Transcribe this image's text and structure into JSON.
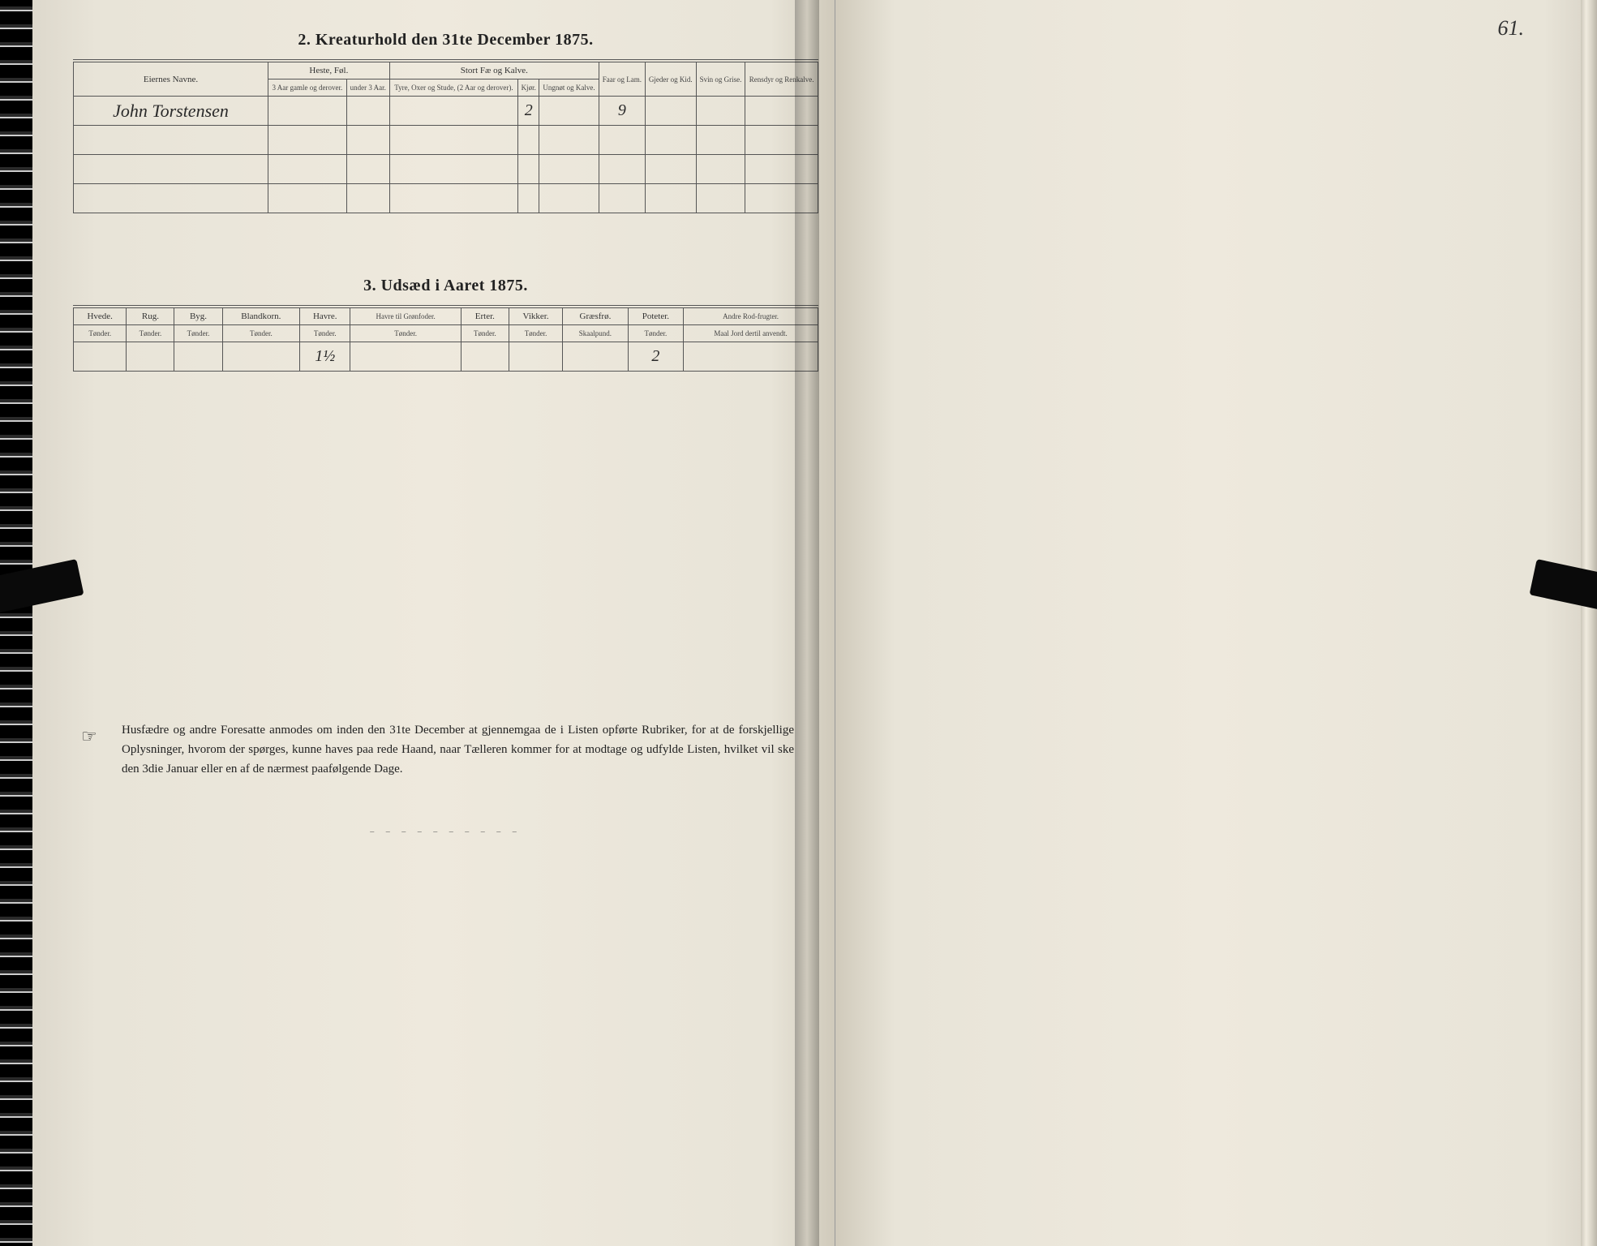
{
  "page_number_right": "61.",
  "section2": {
    "title_num": "2.",
    "title_text": "Kreaturhold den 31te December 1875.",
    "col_name": "Eiernes Navne.",
    "group_heste": "Heste, Føl.",
    "group_stortfae": "Stort Fæ og Kalve.",
    "col_heste_a": "3 Aar gamle og derover.",
    "col_heste_b": "under 3 Aar.",
    "col_fae_a": "Tyre, Oxer og Stude, (2 Aar og derover).",
    "col_fae_b": "Kjør.",
    "col_fae_c": "Ungnøt og Kalve.",
    "col_faar": "Faar og Lam.",
    "col_gjed": "Gjeder og Kid.",
    "col_svin": "Svin og Grise.",
    "col_ren": "Rensdyr og Renkalve.",
    "row1_name": "John Torstensen",
    "row1_kjor": "2",
    "row1_faar": "9"
  },
  "section3": {
    "title_num": "3.",
    "title_text": "Udsæd i Aaret 1875.",
    "cols": {
      "hvede": "Hvede.",
      "rug": "Rug.",
      "byg": "Byg.",
      "bland": "Blandkorn.",
      "havre": "Havre.",
      "havre_gron": "Havre til Grønfoder.",
      "erter": "Erter.",
      "vikker": "Vikker.",
      "graes": "Græsfrø.",
      "poteter": "Poteter.",
      "andre": "Andre Rod-frugter."
    },
    "unit_tonder": "Tønder.",
    "unit_skaal": "Skaalpund.",
    "unit_andre": "Maal Jord dertil anvendt.",
    "val_havre": "1½",
    "val_poteter": "2"
  },
  "footnote": {
    "text": "Husfædre og andre Foresatte anmodes om inden den 31te December at gjennemgaa de i Listen opførte Rubriker, for at de forskjellige Oplysninger, hvorom der spørges, kunne haves paa rede Haand, naar Tælleren kommer for at modtage og udfylde Listen, hvilket vil ske den 3die Januar eller en af de nærmest paafølgende Dage."
  },
  "colors": {
    "paper": "#e8e4d8",
    "ink": "#222222",
    "border": "#555555",
    "background": "#1a1a1a"
  }
}
